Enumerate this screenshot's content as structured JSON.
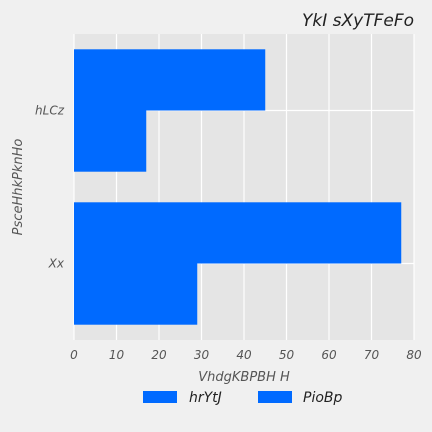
{
  "chart_data": {
    "type": "bar",
    "orientation": "horizontal",
    "title": "YkI sXyTFeFo",
    "xlabel": "VhdgKBPBH H",
    "ylabel": "PsceHhkPknHo",
    "categories": [
      "hLCz",
      "Xx"
    ],
    "series": [
      {
        "name": "hrYtJ",
        "values": [
          17,
          29
        ],
        "color": "#006aff"
      },
      {
        "name": "PioBp",
        "values": [
          45,
          77
        ],
        "color": "#006aff"
      }
    ],
    "xlim": [
      0,
      80
    ],
    "xticks": [
      0,
      10,
      20,
      30,
      40,
      50,
      60,
      70,
      80
    ],
    "grid": true,
    "legend_position": "bottom-center",
    "colors": {
      "background": "#f0f0f0",
      "plot_background": "#e5e5e5",
      "grid": "#ffffff"
    }
  }
}
